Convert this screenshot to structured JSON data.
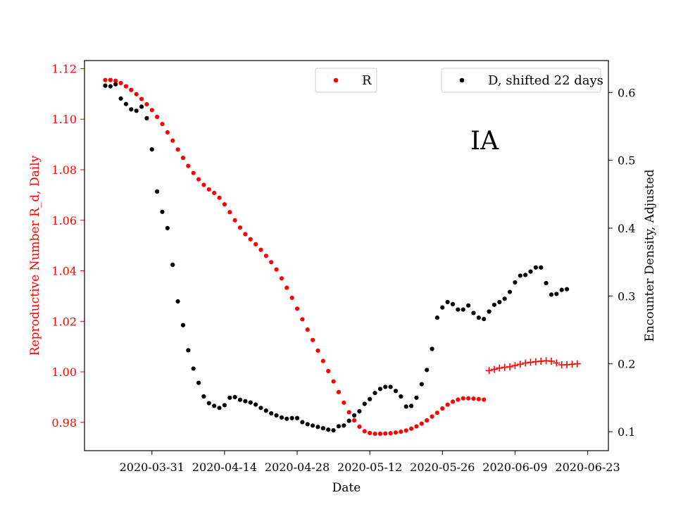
{
  "chart_data": {
    "type": "scatter",
    "annotation": "IA",
    "xlabel": "Date",
    "ylabel_left": "Reproductive Number R_d, Daily",
    "ylabel_right": "Encounter Density, Adjusted",
    "x_ticks": [
      "2020-03-31",
      "2020-04-14",
      "2020-04-28",
      "2020-05-12",
      "2020-05-26",
      "2020-06-09",
      "2020-06-23"
    ],
    "y_left_ticks": [
      "0.98",
      "1.00",
      "1.02",
      "1.04",
      "1.06",
      "1.08",
      "1.10",
      "1.12"
    ],
    "y_right_ticks": [
      "0.1",
      "0.2",
      "0.3",
      "0.4",
      "0.5",
      "0.6"
    ],
    "x_range": [
      "2020-03-18",
      "2020-06-27"
    ],
    "y_left_range": [
      0.9688,
      1.1232
    ],
    "y_right_range": [
      0.072,
      0.647
    ],
    "legend_left": {
      "label": "R",
      "position": "upper-center"
    },
    "legend_right": {
      "label": "D, shifted 22 days",
      "position": "upper-right"
    },
    "colors": {
      "R": "#ff0000",
      "D": "#000000",
      "left_axis": "#ff0000",
      "right_axis": "#000000"
    },
    "series": [
      {
        "name": "R",
        "axis": "left",
        "marker": "dot",
        "color": "#ff0000",
        "start_date": "2020-03-22",
        "values": [
          1.1155,
          1.1155,
          1.1152,
          1.1143,
          1.113,
          1.1116,
          1.1099,
          1.108,
          1.1059,
          1.1036,
          1.1009,
          1.0981,
          1.0948,
          1.0915,
          1.088,
          1.0847,
          1.0815,
          1.0787,
          1.0762,
          1.074,
          1.0722,
          1.0708,
          1.0689,
          1.0663,
          1.0632,
          1.06,
          1.0571,
          1.0545,
          1.0525,
          1.0505,
          1.0483,
          1.0459,
          1.0434,
          1.0405,
          1.037,
          1.0333,
          1.0293,
          1.025,
          1.0208,
          1.0167,
          1.0126,
          1.0084,
          1.0043,
          1.0003,
          0.9962,
          0.992,
          0.9878,
          0.984,
          0.9808,
          0.9783,
          0.9765,
          0.9758,
          0.9755,
          0.9755,
          0.9756,
          0.9757,
          0.976,
          0.9763,
          0.9768,
          0.9775,
          0.9784,
          0.9795,
          0.9808,
          0.9823,
          0.9838,
          0.9855,
          0.987,
          0.9882,
          0.989,
          0.9895,
          0.9895,
          0.9894,
          0.9892,
          0.989
        ]
      },
      {
        "name": "R",
        "axis": "left",
        "marker": "plus",
        "color": "#ff0000",
        "start_date": "2020-06-04",
        "values": [
          1.0005,
          1.001,
          1.0015,
          1.0018,
          1.002,
          1.0025,
          1.003,
          1.0035,
          1.0038,
          1.004,
          1.0042,
          1.0044,
          1.0042,
          1.0035,
          1.0028,
          1.0028,
          1.003,
          1.0032
        ]
      },
      {
        "name": "D, shifted 22 days",
        "axis": "right",
        "marker": "dot",
        "color": "#000000",
        "start_date": "2020-03-22",
        "values": [
          0.61,
          0.609,
          0.612,
          0.591,
          0.583,
          0.575,
          0.573,
          0.579,
          0.562,
          0.516,
          0.454,
          0.424,
          0.4,
          0.346,
          0.292,
          0.257,
          0.22,
          0.193,
          0.172,
          0.152,
          0.142,
          0.138,
          0.135,
          0.139,
          0.15,
          0.151,
          0.147,
          0.145,
          0.143,
          0.14,
          0.135,
          0.131,
          0.127,
          0.124,
          0.121,
          0.119,
          0.12,
          0.12,
          0.114,
          0.111,
          0.109,
          0.107,
          0.105,
          0.103,
          0.102,
          0.108,
          0.109,
          0.116,
          0.124,
          0.13,
          0.141,
          0.148,
          0.157,
          0.163,
          0.166,
          0.166,
          0.16,
          0.152,
          0.137,
          0.138,
          0.15,
          0.17,
          0.191,
          0.222,
          0.268,
          0.283,
          0.291,
          0.288,
          0.28,
          0.28,
          0.286,
          0.275,
          0.268,
          0.266,
          0.277,
          0.287,
          0.291,
          0.296,
          0.306,
          0.32,
          0.33,
          0.331,
          0.336,
          0.342,
          0.342,
          0.319,
          0.302,
          0.303,
          0.309,
          0.31
        ]
      }
    ]
  }
}
